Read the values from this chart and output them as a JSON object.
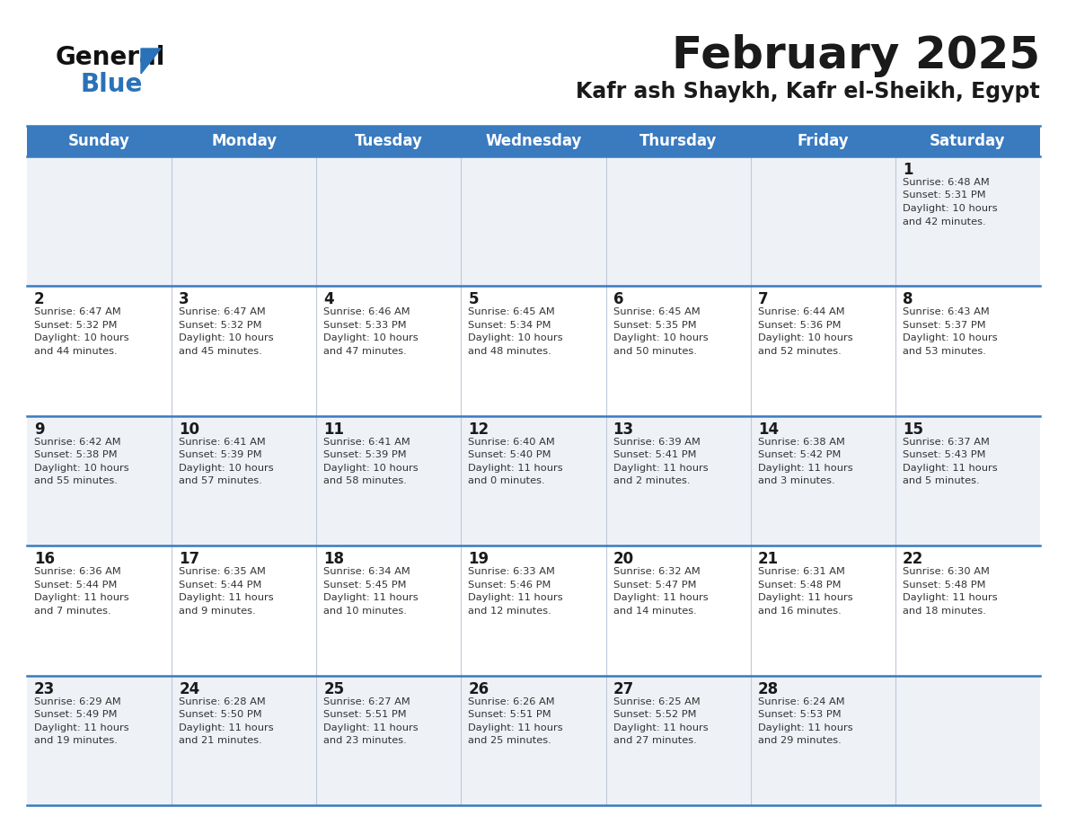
{
  "title": "February 2025",
  "subtitle": "Kafr ash Shaykh, Kafr el-Sheikh, Egypt",
  "header_bg": "#3a7abf",
  "header_text": "#ffffff",
  "cell_bg_odd": "#eef2f7",
  "cell_bg_even": "#ffffff",
  "day_headers": [
    "Sunday",
    "Monday",
    "Tuesday",
    "Wednesday",
    "Thursday",
    "Friday",
    "Saturday"
  ],
  "title_color": "#1a1a1a",
  "subtitle_color": "#1a1a1a",
  "day_num_color": "#1a1a1a",
  "cell_text_color": "#333333",
  "row_sep_color": "#3a7abf",
  "col_sep_color": "#c0c8d8",
  "logo_text_general": "General",
  "logo_text_blue": "Blue",
  "logo_color_general": "#111111",
  "logo_color_blue": "#2a72b8",
  "logo_triangle_color": "#2a72b8",
  "weeks": [
    [
      {
        "day": null,
        "text": ""
      },
      {
        "day": null,
        "text": ""
      },
      {
        "day": null,
        "text": ""
      },
      {
        "day": null,
        "text": ""
      },
      {
        "day": null,
        "text": ""
      },
      {
        "day": null,
        "text": ""
      },
      {
        "day": 1,
        "text": "Sunrise: 6:48 AM\nSunset: 5:31 PM\nDaylight: 10 hours\nand 42 minutes."
      }
    ],
    [
      {
        "day": 2,
        "text": "Sunrise: 6:47 AM\nSunset: 5:32 PM\nDaylight: 10 hours\nand 44 minutes."
      },
      {
        "day": 3,
        "text": "Sunrise: 6:47 AM\nSunset: 5:32 PM\nDaylight: 10 hours\nand 45 minutes."
      },
      {
        "day": 4,
        "text": "Sunrise: 6:46 AM\nSunset: 5:33 PM\nDaylight: 10 hours\nand 47 minutes."
      },
      {
        "day": 5,
        "text": "Sunrise: 6:45 AM\nSunset: 5:34 PM\nDaylight: 10 hours\nand 48 minutes."
      },
      {
        "day": 6,
        "text": "Sunrise: 6:45 AM\nSunset: 5:35 PM\nDaylight: 10 hours\nand 50 minutes."
      },
      {
        "day": 7,
        "text": "Sunrise: 6:44 AM\nSunset: 5:36 PM\nDaylight: 10 hours\nand 52 minutes."
      },
      {
        "day": 8,
        "text": "Sunrise: 6:43 AM\nSunset: 5:37 PM\nDaylight: 10 hours\nand 53 minutes."
      }
    ],
    [
      {
        "day": 9,
        "text": "Sunrise: 6:42 AM\nSunset: 5:38 PM\nDaylight: 10 hours\nand 55 minutes."
      },
      {
        "day": 10,
        "text": "Sunrise: 6:41 AM\nSunset: 5:39 PM\nDaylight: 10 hours\nand 57 minutes."
      },
      {
        "day": 11,
        "text": "Sunrise: 6:41 AM\nSunset: 5:39 PM\nDaylight: 10 hours\nand 58 minutes."
      },
      {
        "day": 12,
        "text": "Sunrise: 6:40 AM\nSunset: 5:40 PM\nDaylight: 11 hours\nand 0 minutes."
      },
      {
        "day": 13,
        "text": "Sunrise: 6:39 AM\nSunset: 5:41 PM\nDaylight: 11 hours\nand 2 minutes."
      },
      {
        "day": 14,
        "text": "Sunrise: 6:38 AM\nSunset: 5:42 PM\nDaylight: 11 hours\nand 3 minutes."
      },
      {
        "day": 15,
        "text": "Sunrise: 6:37 AM\nSunset: 5:43 PM\nDaylight: 11 hours\nand 5 minutes."
      }
    ],
    [
      {
        "day": 16,
        "text": "Sunrise: 6:36 AM\nSunset: 5:44 PM\nDaylight: 11 hours\nand 7 minutes."
      },
      {
        "day": 17,
        "text": "Sunrise: 6:35 AM\nSunset: 5:44 PM\nDaylight: 11 hours\nand 9 minutes."
      },
      {
        "day": 18,
        "text": "Sunrise: 6:34 AM\nSunset: 5:45 PM\nDaylight: 11 hours\nand 10 minutes."
      },
      {
        "day": 19,
        "text": "Sunrise: 6:33 AM\nSunset: 5:46 PM\nDaylight: 11 hours\nand 12 minutes."
      },
      {
        "day": 20,
        "text": "Sunrise: 6:32 AM\nSunset: 5:47 PM\nDaylight: 11 hours\nand 14 minutes."
      },
      {
        "day": 21,
        "text": "Sunrise: 6:31 AM\nSunset: 5:48 PM\nDaylight: 11 hours\nand 16 minutes."
      },
      {
        "day": 22,
        "text": "Sunrise: 6:30 AM\nSunset: 5:48 PM\nDaylight: 11 hours\nand 18 minutes."
      }
    ],
    [
      {
        "day": 23,
        "text": "Sunrise: 6:29 AM\nSunset: 5:49 PM\nDaylight: 11 hours\nand 19 minutes."
      },
      {
        "day": 24,
        "text": "Sunrise: 6:28 AM\nSunset: 5:50 PM\nDaylight: 11 hours\nand 21 minutes."
      },
      {
        "day": 25,
        "text": "Sunrise: 6:27 AM\nSunset: 5:51 PM\nDaylight: 11 hours\nand 23 minutes."
      },
      {
        "day": 26,
        "text": "Sunrise: 6:26 AM\nSunset: 5:51 PM\nDaylight: 11 hours\nand 25 minutes."
      },
      {
        "day": 27,
        "text": "Sunrise: 6:25 AM\nSunset: 5:52 PM\nDaylight: 11 hours\nand 27 minutes."
      },
      {
        "day": 28,
        "text": "Sunrise: 6:24 AM\nSunset: 5:53 PM\nDaylight: 11 hours\nand 29 minutes."
      },
      {
        "day": null,
        "text": ""
      }
    ]
  ]
}
